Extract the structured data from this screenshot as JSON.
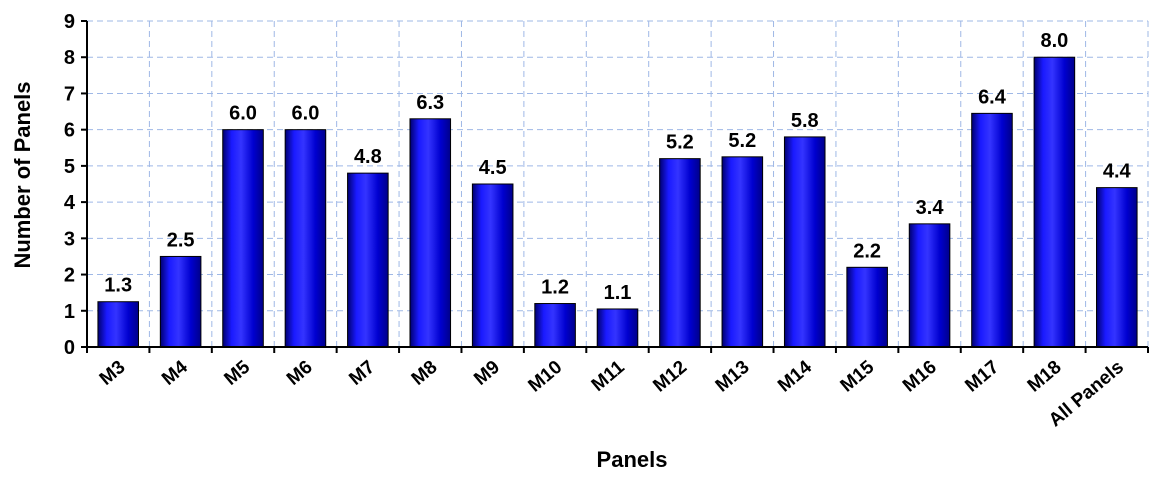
{
  "chart_data": {
    "type": "bar",
    "title": "",
    "xlabel": "Panels",
    "ylabel": "Number of Panels",
    "categories": [
      "M3",
      "M4",
      "M5",
      "M6",
      "M7",
      "M8",
      "M9",
      "M10",
      "M11",
      "M12",
      "M13",
      "M14",
      "M15",
      "M16",
      "M17",
      "M18",
      "All Panels"
    ],
    "values": [
      1.25,
      2.5,
      6.0,
      6.0,
      4.8,
      6.3,
      4.5,
      1.2,
      1.05,
      5.2,
      5.25,
      5.8,
      2.2,
      3.4,
      6.45,
      8.0,
      4.4
    ],
    "value_labels": [
      "1.3",
      "2.5",
      "6.0",
      "6.0",
      "4.8",
      "6.3",
      "4.5",
      "1.2",
      "1.1",
      "5.2",
      "5.2",
      "5.8",
      "2.2",
      "3.4",
      "6.4",
      "8.0",
      "4.4"
    ],
    "ylim": [
      0,
      9
    ],
    "yticks": [
      "0",
      "1",
      "2",
      "3",
      "4",
      "5",
      "6",
      "7",
      "8",
      "9"
    ],
    "grid": true,
    "legend": "none",
    "colors": {
      "bar": "#0000cc",
      "bar_highlight": "#3a3aff",
      "bar_shadow": "#000080",
      "grid": "#9fb8e6",
      "axis": "#000000"
    }
  }
}
